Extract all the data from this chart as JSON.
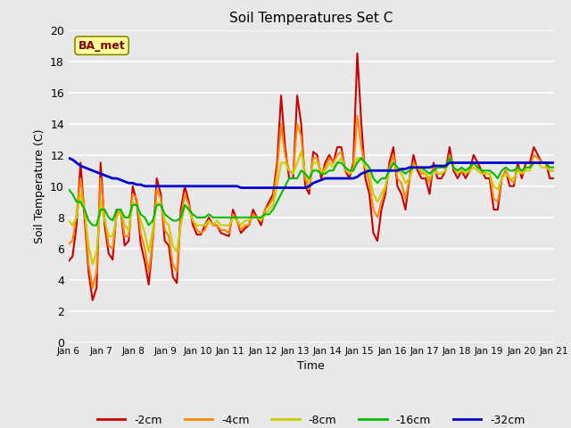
{
  "title": "Soil Temperatures Set C",
  "xlabel": "Time",
  "ylabel": "Soil Temperature (C)",
  "background_color": "#e8e8e8",
  "plot_bg_color": "#e8e8e8",
  "ylim": [
    0,
    20
  ],
  "yticks": [
    0,
    2,
    4,
    6,
    8,
    10,
    12,
    14,
    16,
    18,
    20
  ],
  "xtick_labels": [
    "Jan 6",
    "Jan 7",
    "Jan 8",
    "Jan 9",
    "Jan 10",
    "Jan 11",
    "Jan 12",
    "Jan 13",
    "Jan 14",
    "Jan 15",
    "Jan 16",
    "Jan 17",
    "Jan 18",
    "Jan 19",
    "Jan 20",
    "Jan 21"
  ],
  "annotation_text": "BA_met",
  "annotation_box_facecolor": "#ffff99",
  "annotation_box_edgecolor": "#888800",
  "annotation_text_color": "#800000",
  "series_colors": {
    "-2cm": "#cc0000",
    "-4cm": "#ff8800",
    "-8cm": "#cccc00",
    "-16cm": "#00bb00",
    "-32cm": "#0000cc"
  },
  "legend_labels": [
    "-2cm",
    "-4cm",
    "-8cm",
    "-16cm",
    "-32cm"
  ],
  "d2cm": [
    5.2,
    5.5,
    7.5,
    11.5,
    8.0,
    4.5,
    2.7,
    3.5,
    11.5,
    7.5,
    5.7,
    5.3,
    8.5,
    8.5,
    6.2,
    6.5,
    10.0,
    9.0,
    6.3,
    5.2,
    3.7,
    6.5,
    10.5,
    9.5,
    6.5,
    6.2,
    4.2,
    3.8,
    8.5,
    10.0,
    9.0,
    7.5,
    6.9,
    6.9,
    7.5,
    8.0,
    7.5,
    7.5,
    7.0,
    6.9,
    6.8,
    8.5,
    7.8,
    7.0,
    7.3,
    7.5,
    8.5,
    8.0,
    7.5,
    8.5,
    9.0,
    9.5,
    11.5,
    15.8,
    12.5,
    10.5,
    10.5,
    15.8,
    14.0,
    10.0,
    9.5,
    12.2,
    12.0,
    10.5,
    11.5,
    12.0,
    11.5,
    12.5,
    12.5,
    11.0,
    10.5,
    11.5,
    18.5,
    14.0,
    10.5,
    9.5,
    7.0,
    6.5,
    8.5,
    9.5,
    11.5,
    12.5,
    10.0,
    9.5,
    8.5,
    10.5,
    12.0,
    11.0,
    10.5,
    10.5,
    9.5,
    11.5,
    10.5,
    10.5,
    11.0,
    12.5,
    11.0,
    10.5,
    11.0,
    10.5,
    11.0,
    12.0,
    11.5,
    11.0,
    10.5,
    10.5,
    8.5,
    8.5,
    10.5,
    11.0,
    10.0,
    10.0,
    11.5,
    10.5,
    11.5,
    11.5,
    12.5,
    12.0,
    11.5,
    11.5,
    10.5,
    10.5
  ],
  "d4cm": [
    6.3,
    6.5,
    8.2,
    10.5,
    8.5,
    5.0,
    3.5,
    4.5,
    10.5,
    8.0,
    6.2,
    6.0,
    8.2,
    8.5,
    6.8,
    6.8,
    9.5,
    9.2,
    7.0,
    6.0,
    4.5,
    6.5,
    9.8,
    9.2,
    7.2,
    6.8,
    5.0,
    4.5,
    8.0,
    9.5,
    8.8,
    7.8,
    7.2,
    7.0,
    7.2,
    7.8,
    7.5,
    7.5,
    7.2,
    7.2,
    7.0,
    8.2,
    7.8,
    7.2,
    7.5,
    7.5,
    8.2,
    8.0,
    7.8,
    8.5,
    8.8,
    9.2,
    11.0,
    14.0,
    12.0,
    11.0,
    10.8,
    14.0,
    13.2,
    10.5,
    9.8,
    11.8,
    11.8,
    10.8,
    11.2,
    11.8,
    11.5,
    12.0,
    12.2,
    11.0,
    10.8,
    11.2,
    14.5,
    12.5,
    11.2,
    10.2,
    8.5,
    8.0,
    9.0,
    9.8,
    11.2,
    12.0,
    10.5,
    10.2,
    9.2,
    10.5,
    11.5,
    11.2,
    10.8,
    10.8,
    10.2,
    11.2,
    10.8,
    10.8,
    11.0,
    12.0,
    11.2,
    10.8,
    11.0,
    10.8,
    11.0,
    11.5,
    11.2,
    11.0,
    10.8,
    10.8,
    9.2,
    9.0,
    10.5,
    11.0,
    10.5,
    10.2,
    11.2,
    10.8,
    11.2,
    11.2,
    12.0,
    11.8,
    11.5,
    11.5,
    11.0,
    11.0
  ],
  "d8cm": [
    7.8,
    7.5,
    8.0,
    9.5,
    8.5,
    6.2,
    5.0,
    5.8,
    9.0,
    7.8,
    6.8,
    6.8,
    8.0,
    8.5,
    7.5,
    7.2,
    9.0,
    8.8,
    7.8,
    7.0,
    5.8,
    7.2,
    9.0,
    8.8,
    7.8,
    7.5,
    6.2,
    5.8,
    7.5,
    8.8,
    8.5,
    7.8,
    7.5,
    7.5,
    7.5,
    7.8,
    7.5,
    7.8,
    7.5,
    7.5,
    7.5,
    8.0,
    7.8,
    7.5,
    7.8,
    7.8,
    8.0,
    8.0,
    7.8,
    8.2,
    8.5,
    8.8,
    10.0,
    11.5,
    11.5,
    11.0,
    10.8,
    11.5,
    12.2,
    10.8,
    10.2,
    11.5,
    11.5,
    10.8,
    11.0,
    11.5,
    11.2,
    11.5,
    11.8,
    11.2,
    10.8,
    11.0,
    11.8,
    11.8,
    11.2,
    10.8,
    9.5,
    9.0,
    9.5,
    10.0,
    11.0,
    11.5,
    11.0,
    10.8,
    10.2,
    10.5,
    11.2,
    11.2,
    11.0,
    10.8,
    10.5,
    11.0,
    10.8,
    10.8,
    11.0,
    11.8,
    11.2,
    10.8,
    11.0,
    10.8,
    11.0,
    11.2,
    11.0,
    10.8,
    10.8,
    10.8,
    10.0,
    9.8,
    10.5,
    10.8,
    10.5,
    10.5,
    11.0,
    10.8,
    11.0,
    11.0,
    11.5,
    11.5,
    11.2,
    11.2,
    11.0,
    11.0
  ],
  "d16cm": [
    9.8,
    9.5,
    9.0,
    9.0,
    8.5,
    7.8,
    7.5,
    7.5,
    8.5,
    8.5,
    8.0,
    7.8,
    8.5,
    8.5,
    8.0,
    8.0,
    8.8,
    8.8,
    8.2,
    8.0,
    7.5,
    7.8,
    8.8,
    8.8,
    8.2,
    8.0,
    7.8,
    7.8,
    8.0,
    8.8,
    8.5,
    8.2,
    8.0,
    8.0,
    8.0,
    8.2,
    8.0,
    8.0,
    8.0,
    8.0,
    8.0,
    8.0,
    8.0,
    8.0,
    8.0,
    8.0,
    8.0,
    8.0,
    8.0,
    8.2,
    8.2,
    8.5,
    9.0,
    9.5,
    10.0,
    10.5,
    10.5,
    10.5,
    11.0,
    10.8,
    10.5,
    11.0,
    11.0,
    10.8,
    10.8,
    11.0,
    11.0,
    11.5,
    11.5,
    11.2,
    11.0,
    11.0,
    11.5,
    11.8,
    11.5,
    11.2,
    10.5,
    10.2,
    10.5,
    10.5,
    11.0,
    11.5,
    11.2,
    11.0,
    10.8,
    11.0,
    11.2,
    11.2,
    11.2,
    11.0,
    10.8,
    11.0,
    11.2,
    11.2,
    11.2,
    11.8,
    11.2,
    11.0,
    11.2,
    11.0,
    11.2,
    11.5,
    11.2,
    11.0,
    11.0,
    11.0,
    10.8,
    10.5,
    11.0,
    11.2,
    11.0,
    11.0,
    11.2,
    11.0,
    11.2,
    11.2,
    11.5,
    11.5,
    11.5,
    11.5,
    11.2,
    11.2
  ],
  "d32cm": [
    11.8,
    11.7,
    11.5,
    11.3,
    11.2,
    11.1,
    11.0,
    10.9,
    10.8,
    10.7,
    10.6,
    10.5,
    10.5,
    10.4,
    10.3,
    10.2,
    10.2,
    10.1,
    10.1,
    10.0,
    10.0,
    10.0,
    10.0,
    10.0,
    10.0,
    10.0,
    10.0,
    10.0,
    10.0,
    10.0,
    10.0,
    10.0,
    10.0,
    10.0,
    10.0,
    10.0,
    10.0,
    10.0,
    10.0,
    10.0,
    10.0,
    10.0,
    10.0,
    9.9,
    9.9,
    9.9,
    9.9,
    9.9,
    9.9,
    9.9,
    9.9,
    9.9,
    9.9,
    9.9,
    9.9,
    9.9,
    9.9,
    9.9,
    9.9,
    9.9,
    10.0,
    10.2,
    10.3,
    10.4,
    10.5,
    10.5,
    10.5,
    10.5,
    10.5,
    10.5,
    10.5,
    10.5,
    10.6,
    10.8,
    10.9,
    11.0,
    11.0,
    11.0,
    11.0,
    11.0,
    11.0,
    11.0,
    11.0,
    11.1,
    11.1,
    11.2,
    11.2,
    11.2,
    11.2,
    11.2,
    11.2,
    11.3,
    11.3,
    11.3,
    11.3,
    11.5,
    11.5,
    11.5,
    11.5,
    11.5,
    11.5,
    11.5,
    11.5,
    11.5,
    11.5,
    11.5,
    11.5,
    11.5,
    11.5,
    11.5,
    11.5,
    11.5,
    11.5,
    11.5,
    11.5,
    11.5,
    11.5,
    11.5,
    11.5,
    11.5,
    11.5,
    11.5
  ]
}
